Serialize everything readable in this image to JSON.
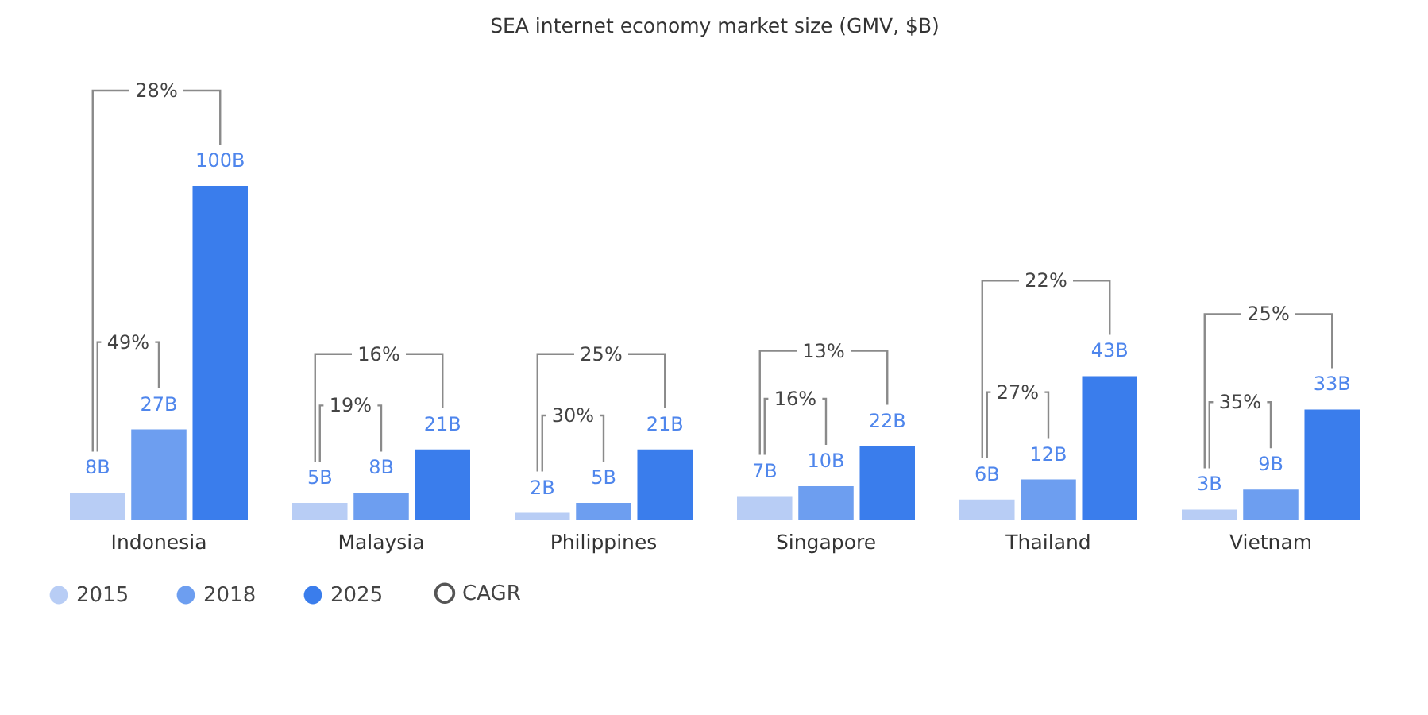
{
  "chart_data": {
    "type": "bar",
    "title": "SEA internet economy market size (GMV, $B)",
    "categories": [
      "Indonesia",
      "Malaysia",
      "Philippines",
      "Singapore",
      "Thailand",
      "Vietnam"
    ],
    "series": [
      {
        "name": "2015",
        "color": "#b8cdf5",
        "values": [
          8,
          5,
          2,
          7,
          6,
          3
        ],
        "value_labels": [
          "8B",
          "5B",
          "2B",
          "7B",
          "6B",
          "3B"
        ]
      },
      {
        "name": "2018",
        "color": "#6d9ef0",
        "values": [
          27,
          8,
          5,
          10,
          12,
          9
        ],
        "value_labels": [
          "27B",
          "8B",
          "5B",
          "10B",
          "12B",
          "9B"
        ]
      },
      {
        "name": "2025",
        "color": "#3a7dec",
        "values": [
          100,
          21,
          21,
          22,
          43,
          33
        ],
        "value_labels": [
          "100B",
          "21B",
          "21B",
          "22B",
          "43B",
          "33B"
        ]
      }
    ],
    "annotations": [
      "49%",
      "28%",
      "19%",
      "16%",
      "30%",
      "25%",
      "16%",
      "13%",
      "27%",
      "22%",
      "35%",
      "25%",
      "CAGR"
    ],
    "legend": "bottom",
    "grid": false
  }
}
